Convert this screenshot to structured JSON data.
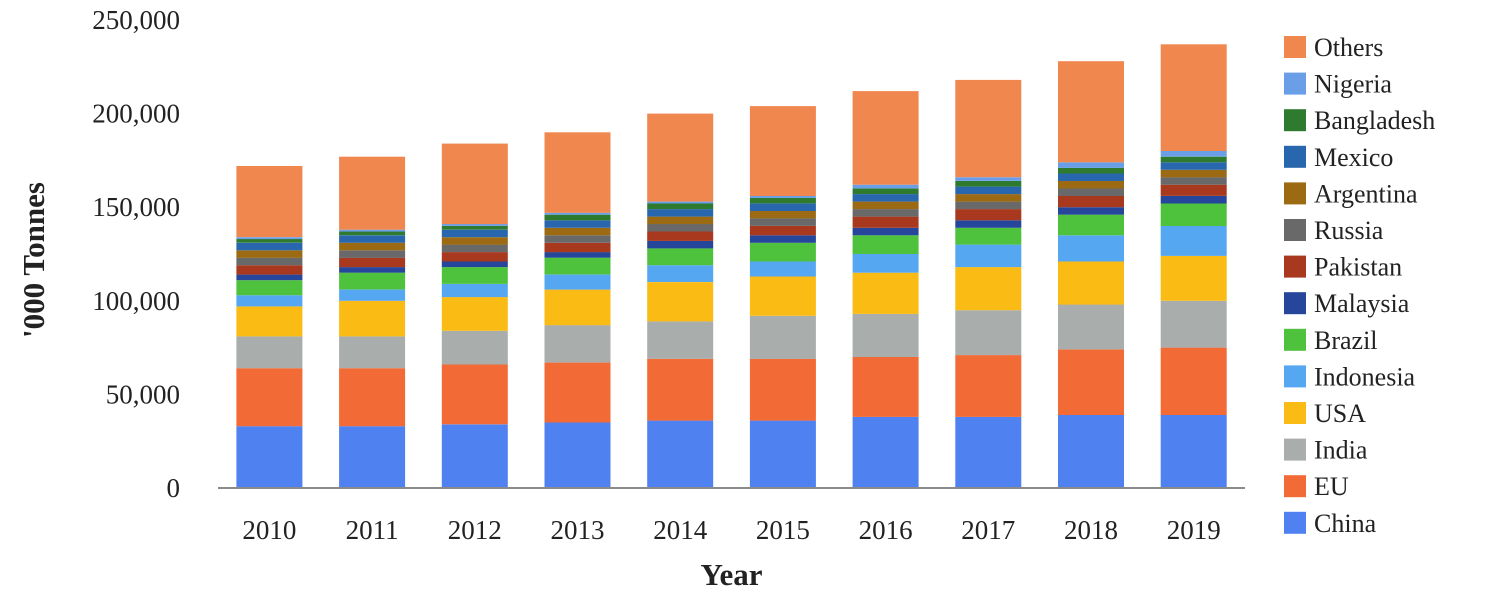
{
  "chart_data": {
    "type": "bar",
    "stacked": true,
    "xlabel": "Year",
    "ylabel": "'000 Tonnes",
    "ylim": [
      0,
      250000
    ],
    "yticks": [
      0,
      50000,
      100000,
      150000,
      200000,
      250000
    ],
    "ytick_labels": [
      "0",
      "50,000",
      "100,000",
      "150,000",
      "200,000",
      "250,000"
    ],
    "grid": false,
    "legend_position": "right",
    "categories": [
      "2010",
      "2011",
      "2012",
      "2013",
      "2014",
      "2015",
      "2016",
      "2017",
      "2018",
      "2019"
    ],
    "series": [
      {
        "name": "China",
        "color": "#4f81f0",
        "values": [
          33000,
          33000,
          34000,
          35000,
          36000,
          36000,
          38000,
          38000,
          39000,
          39000
        ]
      },
      {
        "name": "EU",
        "color": "#f26a35",
        "values": [
          31000,
          31000,
          32000,
          32000,
          33000,
          33000,
          32000,
          33000,
          35000,
          36000
        ]
      },
      {
        "name": "India",
        "color": "#a9adab",
        "values": [
          17000,
          17000,
          18000,
          20000,
          20000,
          23000,
          23000,
          24000,
          24000,
          25000
        ]
      },
      {
        "name": "USA",
        "color": "#fbbb15",
        "values": [
          16000,
          19000,
          18000,
          19000,
          21000,
          21000,
          22000,
          23000,
          23000,
          24000
        ]
      },
      {
        "name": "Indonesia",
        "color": "#56a7f2",
        "values": [
          6000,
          6000,
          7000,
          8000,
          9000,
          8000,
          10000,
          12000,
          14000,
          16000
        ]
      },
      {
        "name": "Brazil",
        "color": "#4fc23d",
        "values": [
          8000,
          9000,
          9000,
          9000,
          9000,
          10000,
          10000,
          9000,
          11000,
          12000
        ]
      },
      {
        "name": "Malaysia",
        "color": "#25469a",
        "values": [
          3000,
          3000,
          3000,
          3000,
          4000,
          4000,
          4000,
          4000,
          4000,
          4000
        ]
      },
      {
        "name": "Pakistan",
        "color": "#a8381e",
        "values": [
          5000,
          5000,
          5000,
          5000,
          5000,
          5000,
          6000,
          6000,
          6000,
          6000
        ]
      },
      {
        "name": "Russia",
        "color": "#696969",
        "values": [
          4000,
          4000,
          4000,
          4000,
          4000,
          4000,
          4000,
          4000,
          4000,
          4000
        ]
      },
      {
        "name": "Argentina",
        "color": "#9c6a12",
        "values": [
          4000,
          4000,
          4000,
          4000,
          4000,
          4000,
          4000,
          4000,
          4000,
          4000
        ]
      },
      {
        "name": "Mexico",
        "color": "#2867ad",
        "values": [
          4000,
          4000,
          4000,
          4000,
          4000,
          4000,
          4000,
          4000,
          4000,
          4000
        ]
      },
      {
        "name": "Bangladesh",
        "color": "#2e7b2f",
        "values": [
          2000,
          2000,
          2000,
          3000,
          3000,
          3000,
          3000,
          3000,
          3000,
          3000
        ]
      },
      {
        "name": "Nigeria",
        "color": "#6a9fe8",
        "values": [
          1000,
          1000,
          1000,
          1000,
          1000,
          1000,
          2000,
          2000,
          3000,
          3000
        ]
      },
      {
        "name": "Others",
        "color": "#f0874f",
        "values": [
          38000,
          39000,
          43000,
          43000,
          47000,
          48000,
          50000,
          52000,
          54000,
          57000
        ]
      }
    ]
  }
}
